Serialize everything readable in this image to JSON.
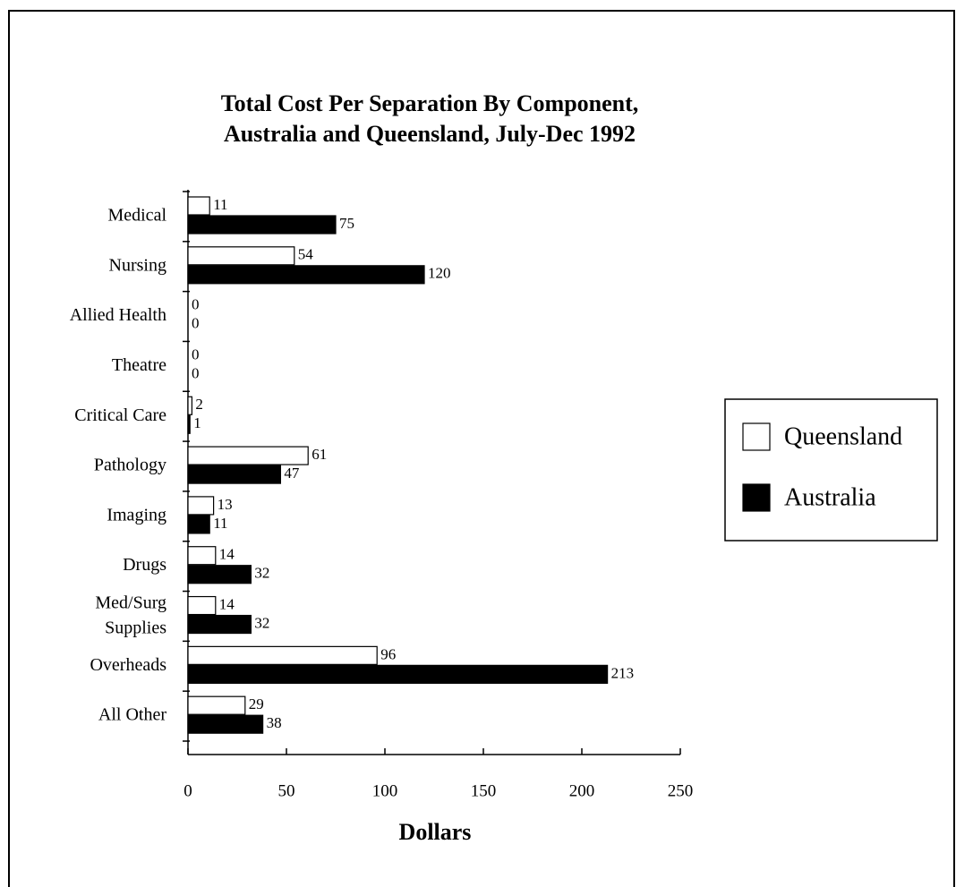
{
  "chart_data": {
    "type": "bar",
    "orientation": "horizontal",
    "title": "Total Cost Per Separation By Component,\nAustralia and Queensland, July-Dec 1992",
    "xlabel": "Dollars",
    "categories": [
      "Medical",
      "Nursing",
      "Allied Health",
      "Theatre",
      "Critical Care",
      "Pathology",
      "Imaging",
      "Drugs",
      "Med/Surg\nSupplies",
      "Overheads",
      "All Other"
    ],
    "series": [
      {
        "name": "Queensland",
        "color": "#ffffff",
        "values": [
          11,
          54,
          0,
          0,
          2,
          61,
          13,
          14,
          14,
          96,
          29
        ]
      },
      {
        "name": "Australia",
        "color": "#000000",
        "values": [
          75,
          120,
          0,
          0,
          1,
          47,
          11,
          32,
          32,
          213,
          38
        ]
      }
    ],
    "xlim": [
      0,
      250
    ],
    "xticks": [
      0,
      50,
      100,
      150,
      200,
      250
    ],
    "legend": "right"
  }
}
